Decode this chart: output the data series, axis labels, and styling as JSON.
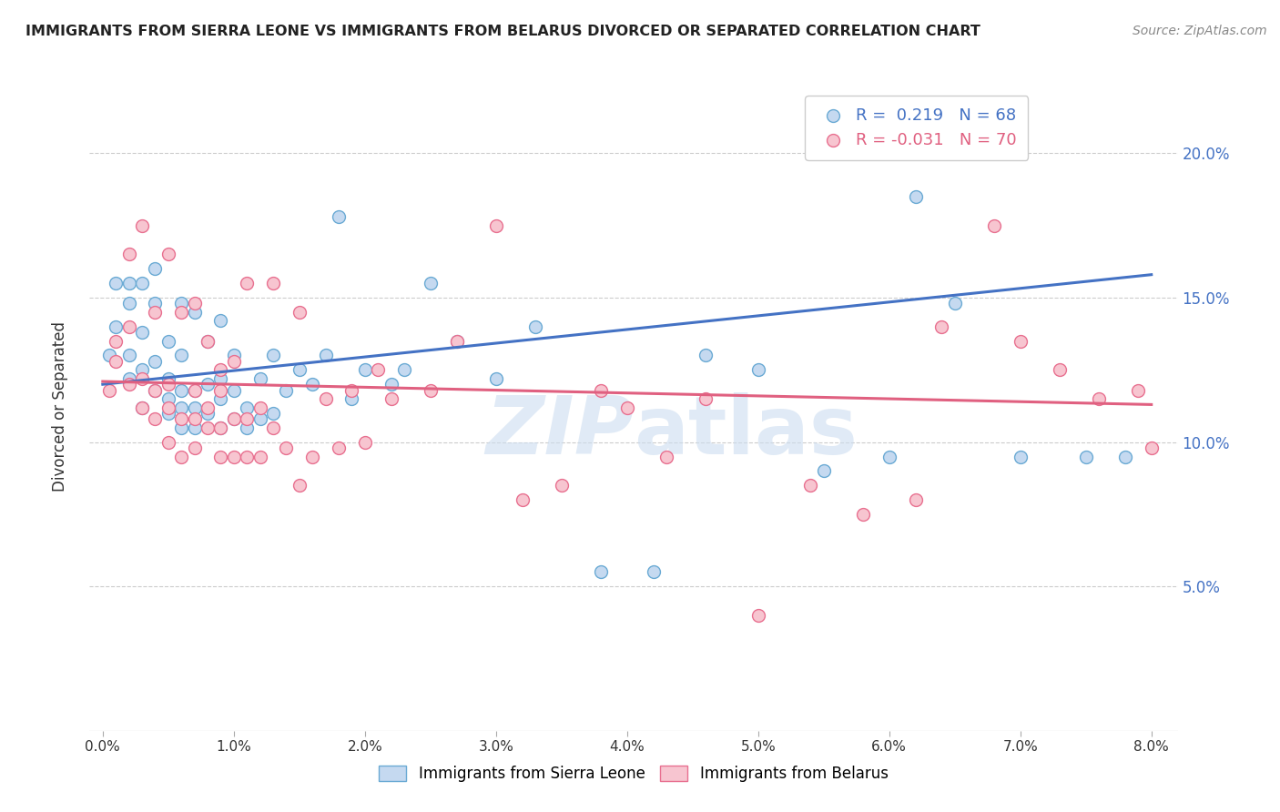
{
  "title": "IMMIGRANTS FROM SIERRA LEONE VS IMMIGRANTS FROM BELARUS DIVORCED OR SEPARATED CORRELATION CHART",
  "source": "Source: ZipAtlas.com",
  "ylabel": "Divorced or Separated",
  "legend_entries": [
    {
      "label": "R =  0.219   N = 68"
    },
    {
      "label": "R = -0.031   N = 70"
    }
  ],
  "blue_line": {
    "x": [
      0.0,
      0.08
    ],
    "y": [
      0.12,
      0.158
    ]
  },
  "pink_line": {
    "x": [
      0.0,
      0.08
    ],
    "y": [
      0.121,
      0.113
    ]
  },
  "blue_scatter_x": [
    0.0005,
    0.001,
    0.001,
    0.002,
    0.002,
    0.002,
    0.002,
    0.003,
    0.003,
    0.003,
    0.003,
    0.004,
    0.004,
    0.004,
    0.004,
    0.005,
    0.005,
    0.005,
    0.005,
    0.006,
    0.006,
    0.006,
    0.006,
    0.006,
    0.007,
    0.007,
    0.007,
    0.007,
    0.008,
    0.008,
    0.008,
    0.009,
    0.009,
    0.009,
    0.009,
    0.01,
    0.01,
    0.01,
    0.011,
    0.011,
    0.012,
    0.012,
    0.013,
    0.013,
    0.014,
    0.015,
    0.016,
    0.017,
    0.018,
    0.019,
    0.02,
    0.022,
    0.023,
    0.025,
    0.027,
    0.03,
    0.033,
    0.038,
    0.042,
    0.046,
    0.05,
    0.055,
    0.06,
    0.062,
    0.065,
    0.07,
    0.075,
    0.078
  ],
  "blue_scatter_y": [
    0.13,
    0.14,
    0.155,
    0.122,
    0.13,
    0.148,
    0.155,
    0.112,
    0.125,
    0.138,
    0.155,
    0.118,
    0.128,
    0.148,
    0.16,
    0.11,
    0.115,
    0.122,
    0.135,
    0.105,
    0.112,
    0.118,
    0.13,
    0.148,
    0.105,
    0.112,
    0.118,
    0.145,
    0.11,
    0.12,
    0.135,
    0.105,
    0.115,
    0.122,
    0.142,
    0.108,
    0.118,
    0.13,
    0.105,
    0.112,
    0.108,
    0.122,
    0.11,
    0.13,
    0.118,
    0.125,
    0.12,
    0.13,
    0.178,
    0.115,
    0.125,
    0.12,
    0.125,
    0.155,
    0.135,
    0.122,
    0.14,
    0.055,
    0.055,
    0.13,
    0.125,
    0.09,
    0.095,
    0.185,
    0.148,
    0.095,
    0.095,
    0.095
  ],
  "pink_scatter_x": [
    0.0005,
    0.001,
    0.001,
    0.002,
    0.002,
    0.002,
    0.003,
    0.003,
    0.003,
    0.004,
    0.004,
    0.004,
    0.005,
    0.005,
    0.005,
    0.005,
    0.006,
    0.006,
    0.006,
    0.007,
    0.007,
    0.007,
    0.007,
    0.008,
    0.008,
    0.008,
    0.009,
    0.009,
    0.009,
    0.009,
    0.01,
    0.01,
    0.01,
    0.011,
    0.011,
    0.011,
    0.012,
    0.012,
    0.013,
    0.013,
    0.014,
    0.015,
    0.015,
    0.016,
    0.017,
    0.018,
    0.019,
    0.02,
    0.021,
    0.022,
    0.025,
    0.027,
    0.03,
    0.032,
    0.035,
    0.038,
    0.04,
    0.043,
    0.046,
    0.05,
    0.054,
    0.058,
    0.062,
    0.064,
    0.068,
    0.07,
    0.073,
    0.076,
    0.079,
    0.08
  ],
  "pink_scatter_y": [
    0.118,
    0.128,
    0.135,
    0.12,
    0.14,
    0.165,
    0.112,
    0.122,
    0.175,
    0.108,
    0.118,
    0.145,
    0.1,
    0.112,
    0.12,
    0.165,
    0.095,
    0.108,
    0.145,
    0.098,
    0.108,
    0.118,
    0.148,
    0.105,
    0.112,
    0.135,
    0.095,
    0.105,
    0.118,
    0.125,
    0.095,
    0.108,
    0.128,
    0.095,
    0.108,
    0.155,
    0.095,
    0.112,
    0.105,
    0.155,
    0.098,
    0.085,
    0.145,
    0.095,
    0.115,
    0.098,
    0.118,
    0.1,
    0.125,
    0.115,
    0.118,
    0.135,
    0.175,
    0.08,
    0.085,
    0.118,
    0.112,
    0.095,
    0.115,
    0.04,
    0.085,
    0.075,
    0.08,
    0.14,
    0.175,
    0.135,
    0.125,
    0.115,
    0.118,
    0.098
  ],
  "blue_color": "#c5d9f0",
  "pink_color": "#f7c5d0",
  "blue_edge_color": "#6aaad4",
  "pink_edge_color": "#e87090",
  "blue_line_color": "#4472c4",
  "pink_line_color": "#e06080",
  "watermark_color": "#ccddf0",
  "scatter_size": 100,
  "xlim": [
    -0.001,
    0.082
  ],
  "ylim": [
    0.0,
    0.225
  ],
  "xaxis_ticks": [
    0.0,
    0.01,
    0.02,
    0.03,
    0.04,
    0.05,
    0.06,
    0.07,
    0.08
  ],
  "yaxis_ticks": [
    0.05,
    0.1,
    0.15,
    0.2
  ]
}
